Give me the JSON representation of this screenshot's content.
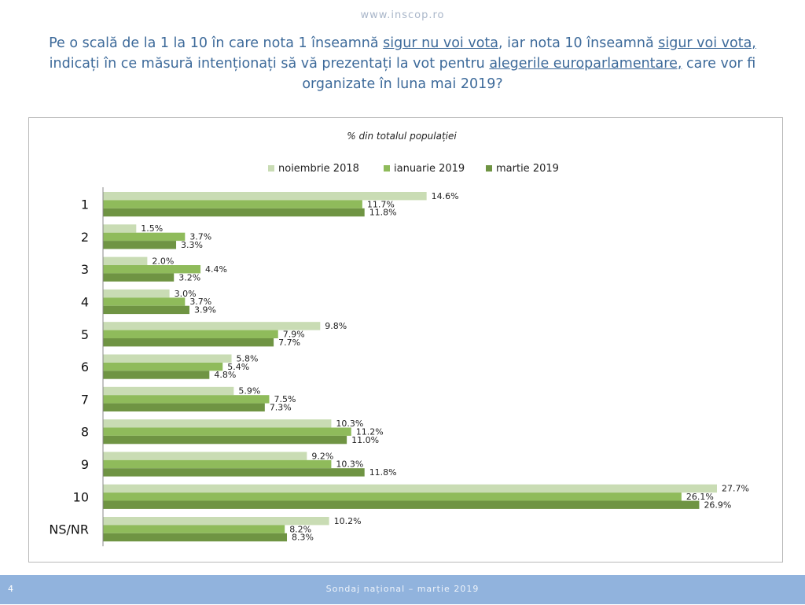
{
  "header": {
    "site_url": "www.inscop.ro",
    "question": [
      {
        "text": "Pe o scală de la 1 la 10 în care nota 1 înseamnă ",
        "u": false
      },
      {
        "text": "sigur nu voi vota",
        "u": true
      },
      {
        "text": ", iar nota 10 înseamnă ",
        "u": false
      },
      {
        "text": "sigur voi vota,",
        "u": true
      },
      {
        "text": " indicați în ce măsură intenționați să vă prezentați la vot pentru ",
        "u": false
      },
      {
        "text": "alegerile europarlamentare,",
        "u": true
      },
      {
        "text": " care vor fi organizate în luna mai 2019?",
        "u": false
      }
    ]
  },
  "chart_data": {
    "type": "bar",
    "orientation": "horizontal",
    "subtitle": "% din totalul populației",
    "legend_position": "top",
    "categories": [
      "1",
      "2",
      "3",
      "4",
      "5",
      "6",
      "7",
      "8",
      "9",
      "10",
      "NS/NR"
    ],
    "series": [
      {
        "name": "noiembrie 2018",
        "color": "#c9dcb4",
        "values": [
          14.6,
          1.5,
          2.0,
          3.0,
          9.8,
          5.8,
          5.9,
          10.3,
          9.2,
          27.7,
          10.2
        ]
      },
      {
        "name": "ianuarie 2019",
        "color": "#8fbb5b",
        "values": [
          11.7,
          3.7,
          4.4,
          3.7,
          7.9,
          5.4,
          7.5,
          11.2,
          10.3,
          26.1,
          8.2
        ]
      },
      {
        "name": "martie 2019",
        "color": "#6f9443",
        "values": [
          11.8,
          3.3,
          3.2,
          3.9,
          7.7,
          4.8,
          7.3,
          11.0,
          11.8,
          26.9,
          8.3
        ]
      }
    ],
    "value_suffix": "%",
    "decimals": 1,
    "xlim": [
      0,
      30
    ],
    "grid": false
  },
  "footer": {
    "page_number": "4",
    "text": "Sondaj național – martie 2019"
  }
}
